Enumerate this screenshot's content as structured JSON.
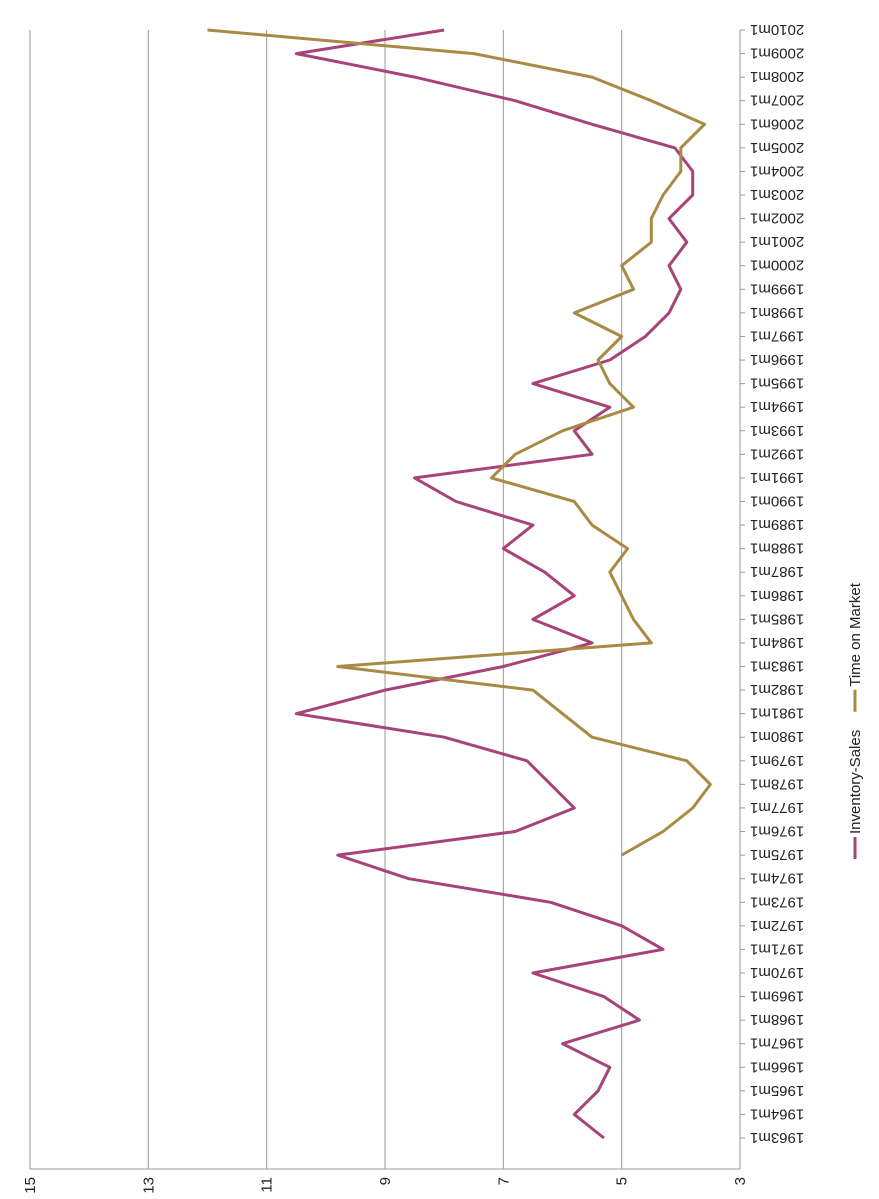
{
  "chart_data": {
    "type": "line",
    "categories": [
      "1963m1",
      "1964m1",
      "1965m1",
      "1966m1",
      "1967m1",
      "1968m1",
      "1969m1",
      "1970m1",
      "1971m1",
      "1972m1",
      "1973m1",
      "1974m1",
      "1975m1",
      "1976m1",
      "1977m1",
      "1978m1",
      "1979m1",
      "1980m1",
      "1981m1",
      "1982m1",
      "1983m1",
      "1984m1",
      "1985m1",
      "1986m1",
      "1987m1",
      "1988m1",
      "1989m1",
      "1990m1",
      "1991m1",
      "1992m1",
      "1993m1",
      "1994m1",
      "1995m1",
      "1996m1",
      "1997m1",
      "1998m1",
      "1999m1",
      "2000m1",
      "2001m1",
      "2002m1",
      "2003m1",
      "2004m1",
      "2005m1",
      "2006m1",
      "2007m1",
      "2008m1",
      "2009m1",
      "2010m1"
    ],
    "series": [
      {
        "name": "Inventory-Sales",
        "color": "#a8437a",
        "values": [
          5.3,
          5.8,
          5.4,
          5.2,
          6.0,
          4.7,
          5.3,
          6.5,
          4.3,
          5.0,
          6.2,
          8.6,
          9.8,
          6.8,
          5.8,
          6.2,
          6.6,
          8.0,
          10.5,
          9.0,
          7.0,
          5.5,
          6.5,
          5.8,
          6.3,
          7.0,
          6.5,
          7.8,
          8.5,
          5.5,
          5.8,
          5.2,
          6.5,
          5.2,
          4.6,
          4.2,
          4.0,
          4.2,
          3.9,
          4.2,
          3.8,
          3.8,
          4.1,
          5.5,
          6.8,
          8.5,
          10.5,
          8.0
        ]
      },
      {
        "name": "Time on Market",
        "color": "#a88a45",
        "values": [
          null,
          null,
          null,
          null,
          null,
          null,
          null,
          null,
          null,
          null,
          null,
          null,
          5.0,
          4.3,
          3.8,
          3.5,
          3.9,
          5.5,
          6.0,
          6.5,
          9.8,
          4.5,
          4.8,
          5.0,
          5.2,
          4.9,
          5.5,
          5.8,
          7.2,
          6.8,
          6.0,
          4.8,
          5.2,
          5.4,
          5.0,
          5.8,
          4.8,
          5.0,
          4.5,
          4.5,
          4.3,
          4.0,
          4.0,
          3.6,
          4.5,
          5.5,
          7.5,
          12.0
        ]
      }
    ],
    "ylim": [
      3,
      15
    ],
    "yticks": [
      3,
      5,
      7,
      9,
      11,
      13,
      15
    ],
    "grid": true,
    "legend": "bottom"
  }
}
